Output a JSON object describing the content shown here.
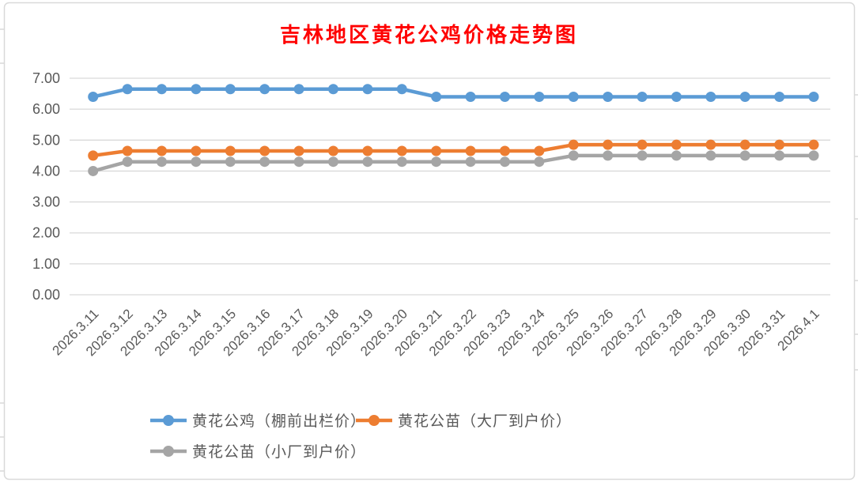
{
  "chart_data": {
    "type": "line",
    "title": "吉林地区黄花公鸡价格走势图",
    "title_color": "#FF0000",
    "xlabel": "",
    "ylabel": "",
    "ylim": [
      0,
      7
    ],
    "ytick_step": 1.0,
    "ytick_labels": [
      "0.00",
      "1.00",
      "2.00",
      "3.00",
      "4.00",
      "5.00",
      "6.00",
      "7.00"
    ],
    "grid": "horizontal",
    "gridline_color": "#D9D9D9",
    "axis_text_color": "#595959",
    "legend_position": "bottom",
    "categories": [
      "2026.3.11",
      "2026.3.12",
      "2026.3.13",
      "2026.3.14",
      "2026.3.15",
      "2026.3.16",
      "2026.3.17",
      "2026.3.18",
      "2026.3.19",
      "2026.3.20",
      "2026.3.21",
      "2026.3.22",
      "2026.3.23",
      "2026.3.24",
      "2026.3.25",
      "2026.3.26",
      "2026.3.27",
      "2026.3.28",
      "2026.3.29",
      "2026.3.30",
      "2026.3.31",
      "2026.4.1"
    ],
    "series": [
      {
        "name": "黄花公鸡（棚前出栏价）",
        "color": "#5B9BD5",
        "values": [
          6.4,
          6.65,
          6.65,
          6.65,
          6.65,
          6.65,
          6.65,
          6.65,
          6.65,
          6.65,
          6.4,
          6.4,
          6.4,
          6.4,
          6.4,
          6.4,
          6.4,
          6.4,
          6.4,
          6.4,
          6.4,
          6.4
        ]
      },
      {
        "name": "黄花公苗（大厂到户价）",
        "color": "#ED7D31",
        "values": [
          4.5,
          4.65,
          4.65,
          4.65,
          4.65,
          4.65,
          4.65,
          4.65,
          4.65,
          4.65,
          4.65,
          4.65,
          4.65,
          4.65,
          4.85,
          4.85,
          4.85,
          4.85,
          4.85,
          4.85,
          4.85,
          4.85
        ]
      },
      {
        "name": "黄花公苗（小厂到户价）",
        "color": "#A5A5A5",
        "values": [
          4.0,
          4.3,
          4.3,
          4.3,
          4.3,
          4.3,
          4.3,
          4.3,
          4.3,
          4.3,
          4.3,
          4.3,
          4.3,
          4.3,
          4.5,
          4.5,
          4.5,
          4.5,
          4.5,
          4.5,
          4.5,
          4.5
        ]
      }
    ]
  }
}
